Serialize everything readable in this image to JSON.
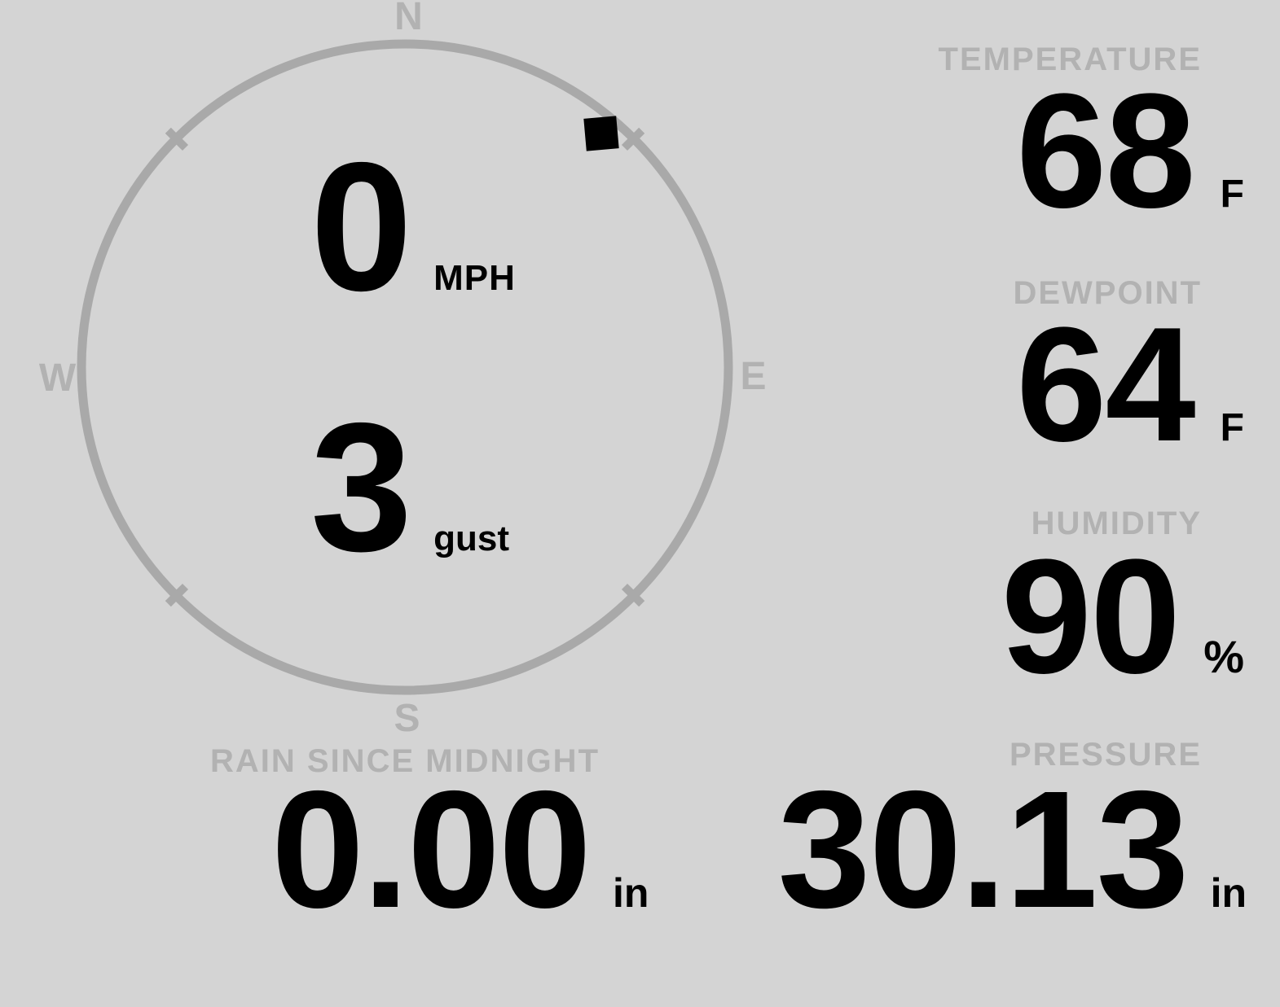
{
  "meta": {
    "bg_color": "#d4d4d4",
    "text_color": "#000000",
    "muted_color": "#b2b2b2",
    "ring_color": "#a9a9a9"
  },
  "compass": {
    "cardinals": {
      "n": "N",
      "e": "E",
      "s": "S",
      "w": "W"
    },
    "wind": {
      "speed": "0",
      "speed_unit": "MPH",
      "gust": "3",
      "gust_unit": "gust",
      "direction_deg": 40
    }
  },
  "metrics": {
    "temperature": {
      "label": "TEMPERATURE",
      "value": "68",
      "unit": "F"
    },
    "dewpoint": {
      "label": "DEWPOINT",
      "value": "64",
      "unit": "F"
    },
    "humidity": {
      "label": "HUMIDITY",
      "value": "90",
      "unit": "%"
    },
    "rain": {
      "label": "RAIN SINCE MIDNIGHT",
      "value": "0.00",
      "unit": "in"
    },
    "pressure": {
      "label": "PRESSURE",
      "value": "30.13",
      "unit": "in"
    }
  }
}
